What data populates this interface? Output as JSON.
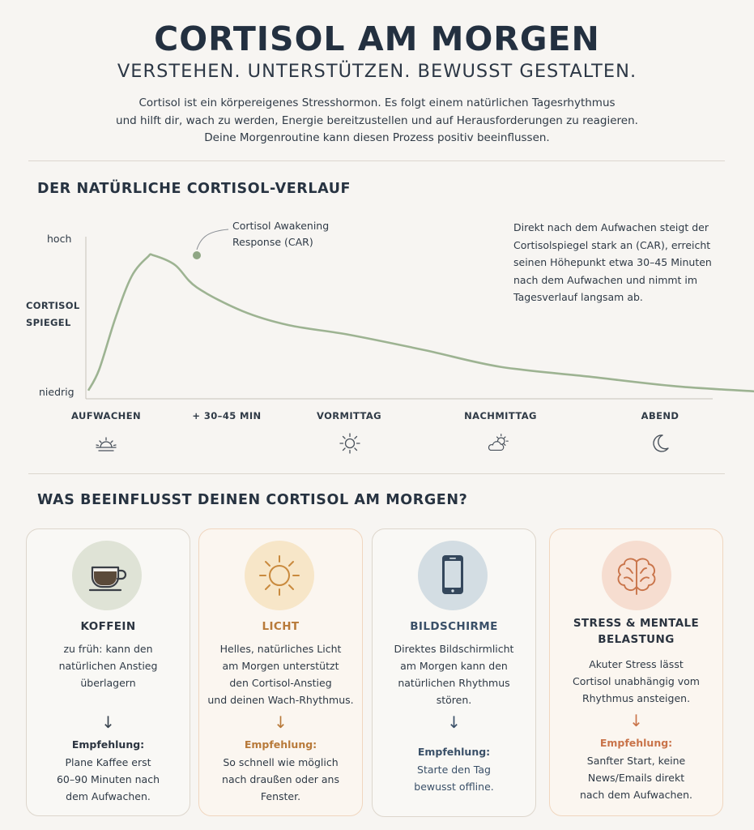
{
  "header": {
    "title": "CORTISOL AM MORGEN",
    "subtitle": "VERSTEHEN. UNTERSTÜTZEN. BEWUSST GESTALTEN.",
    "intro": [
      "Cortisol ist ein körpereigenes Stresshormon. Es folgt einem natürlichen Tagesrhythmus",
      "und hilft dir, wach zu werden, Energie bereitzustellen und auf Herausforderungen zu reagieren.",
      "Deine Morgenroutine kann diesen Prozess positiv beeinflussen."
    ]
  },
  "chart_section": {
    "title": "DER NATÜRLICHE CORTISOL-VERLAUF",
    "y_high": "hoch",
    "y_low": "niedrig",
    "y_axis_line1": "CORTISOL",
    "y_axis_line2": "SPIEGEL",
    "peak_label_line1": "Cortisol Awakening",
    "peak_label_line2": "Response (CAR)",
    "description": [
      "Direkt nach dem Aufwachen steigt der",
      "Cortisolspiegel stark an (CAR), erreicht",
      "seinen Höhepunkt etwa 30–45 Minuten",
      "nach dem Aufwachen und nimmt im",
      "Tagesverlauf langsam ab."
    ],
    "x_labels": [
      {
        "label": "AUFWACHEN",
        "icon": "sunrise-icon"
      },
      {
        "label": "+ 30–45 MIN",
        "icon": ""
      },
      {
        "label": "VORMITTAG",
        "icon": "sun-icon"
      },
      {
        "label": "NACHMITTAG",
        "icon": "cloud-sun-icon"
      },
      {
        "label": "ABEND",
        "icon": "moon-icon"
      }
    ],
    "curve_color": "#9db392"
  },
  "chart_data": {
    "type": "line",
    "title": "DER NATÜRLICHE CORTISOL-VERLAUF",
    "xlabel": "",
    "ylabel": "CORTISOL SPIEGEL",
    "categories": [
      "AUFWACHEN",
      "+ 30–45 MIN",
      "VORMITTAG",
      "NACHMITTAG",
      "ABEND"
    ],
    "y_ticks": [
      "niedrig",
      "hoch"
    ],
    "ylim": [
      0,
      1
    ],
    "series": [
      {
        "values": [
          0.03,
          1.0,
          0.45,
          0.18,
          0.02
        ]
      }
    ],
    "curve": [
      [
        0.0,
        0.03
      ],
      [
        0.1,
        0.18
      ],
      [
        0.25,
        0.55
      ],
      [
        0.4,
        0.85
      ],
      [
        0.55,
        0.99
      ],
      [
        0.6,
        1.0
      ],
      [
        0.8,
        0.93
      ],
      [
        1.0,
        0.77
      ],
      [
        1.3,
        0.6
      ],
      [
        1.6,
        0.5
      ],
      [
        2.0,
        0.43
      ],
      [
        2.5,
        0.32
      ],
      [
        3.0,
        0.2
      ],
      [
        3.5,
        0.13
      ],
      [
        4.0,
        0.06
      ],
      [
        4.5,
        0.02
      ]
    ],
    "grid": false,
    "legend": "none"
  },
  "factors_section": {
    "title": "WAS BEEINFLUSST DEINEN CORTISOL AM MORGEN?",
    "cards": [
      {
        "title": "KOFFEIN",
        "icon": "coffee-cup-icon",
        "title_color": "#2b3440",
        "circle_color": "#dfe3d6",
        "accent": "#2b3440",
        "body": [
          "zu früh: kann den",
          "natürlichen Anstieg",
          "überlagern"
        ],
        "rec_label": "Empfehlung:",
        "rec": [
          "Plane Kaffee erst",
          "60–90 Minuten nach",
          "dem Aufwachen."
        ]
      },
      {
        "title": "LICHT",
        "icon": "sun-icon",
        "title_color": "#b87a3a",
        "circle_color": "#f7e6c8",
        "accent": "#b87a3a",
        "body": [
          "Helles, natürliches Licht",
          "am Morgen unterstützt",
          "den Cortisol-Anstieg",
          "und deinen Wach-Rhythmus."
        ],
        "rec_label": "Empfehlung:",
        "rec": [
          "So schnell wie möglich",
          "nach draußen oder ans",
          "Fenster."
        ]
      },
      {
        "title": "BILDSCHIRME",
        "icon": "smartphone-icon",
        "title_color": "#3a5068",
        "circle_color": "#d3dde3",
        "accent": "#3a5068",
        "body": [
          "Direktes Bildschirmlicht",
          "am Morgen kann den",
          "natürlichen Rhythmus",
          "stören."
        ],
        "rec_label": "Empfehlung:",
        "rec": [
          "Starte den Tag",
          "bewusst offline."
        ]
      },
      {
        "title_line1": "STRESS & MENTALE",
        "title_line2": "BELASTUNG",
        "icon": "brain-icon",
        "title_color": "#2b3440",
        "circle_color": "#f6ddd0",
        "accent": "#c9744a",
        "body": [
          "Akuter Stress lässt",
          "Cortisol unabhängig vom",
          "Rhythmus ansteigen."
        ],
        "rec_label": "Empfehlung:",
        "rec": [
          "Sanfter Start, keine",
          "News/Emails direkt",
          "nach dem Aufwachen."
        ]
      }
    ]
  }
}
